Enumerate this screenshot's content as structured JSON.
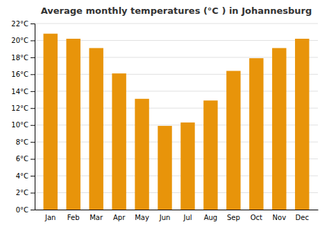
{
  "chart_data": {
    "type": "bar",
    "title": "Average monthly temperatures (°C ) in Johannesburg",
    "categories": [
      "Jan",
      "Feb",
      "Mar",
      "Apr",
      "May",
      "Jun",
      "Jul",
      "Aug",
      "Sep",
      "Oct",
      "Nov",
      "Dec"
    ],
    "values": [
      20.8,
      20.2,
      19.1,
      16.1,
      13.1,
      9.9,
      10.3,
      12.9,
      16.4,
      17.9,
      19.1,
      20.2
    ],
    "color": "#E8940A",
    "ylim": [
      0,
      22
    ],
    "yticks": [
      {
        "value": 0,
        "label": "0°C"
      },
      {
        "value": 2,
        "label": "2°C"
      },
      {
        "value": 4,
        "label": "4°C"
      },
      {
        "value": 6,
        "label": "6°C"
      },
      {
        "value": 8,
        "label": "8°C"
      },
      {
        "value": 10,
        "label": "10°C"
      },
      {
        "value": 12,
        "label": "12°C"
      },
      {
        "value": 14,
        "label": "14°C"
      },
      {
        "value": 16,
        "label": "16°C"
      },
      {
        "value": 18,
        "label": "18°C"
      },
      {
        "value": 20,
        "label": "20°C"
      },
      {
        "value": 22,
        "label": "22°C"
      }
    ],
    "grid": true
  }
}
